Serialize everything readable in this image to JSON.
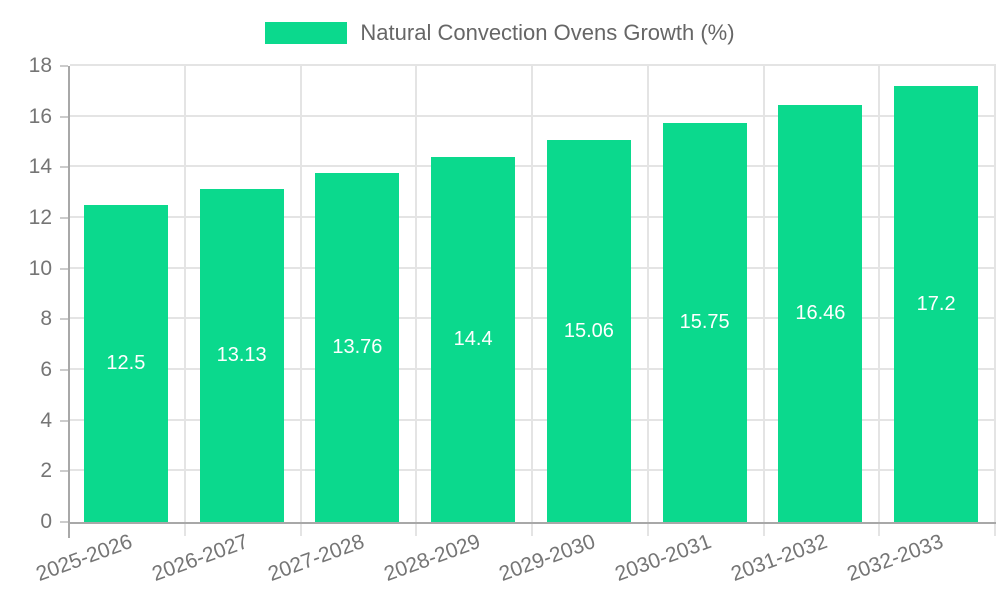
{
  "legend": {
    "label": "Natural Convection Ovens Growth (%)"
  },
  "colors": {
    "bar": "#0bd98d",
    "grid": "#e4e4e4",
    "axis": "#a8a8a8",
    "tick_text": "#757575",
    "legend_text": "#666666",
    "value_text": "#ffffff",
    "background": "#ffffff"
  },
  "chart_data": {
    "type": "bar",
    "title": "",
    "series_name": "Natural Convection Ovens Growth (%)",
    "categories": [
      "2025-2026",
      "2026-2027",
      "2027-2028",
      "2028-2029",
      "2029-2030",
      "2030-2031",
      "2031-2032",
      "2032-2033"
    ],
    "values": [
      12.5,
      13.13,
      13.76,
      14.4,
      15.06,
      15.75,
      16.46,
      17.2
    ],
    "value_labels": [
      "12.5",
      "13.13",
      "13.76",
      "14.4",
      "15.06",
      "15.75",
      "16.46",
      "17.2"
    ],
    "ylim": [
      0,
      18
    ],
    "yticks": [
      0,
      2,
      4,
      6,
      8,
      10,
      12,
      14,
      16,
      18
    ],
    "grid": true,
    "legend_position": "top-center",
    "value_label_position": "center-of-bar",
    "xlabel": "",
    "ylabel": ""
  }
}
